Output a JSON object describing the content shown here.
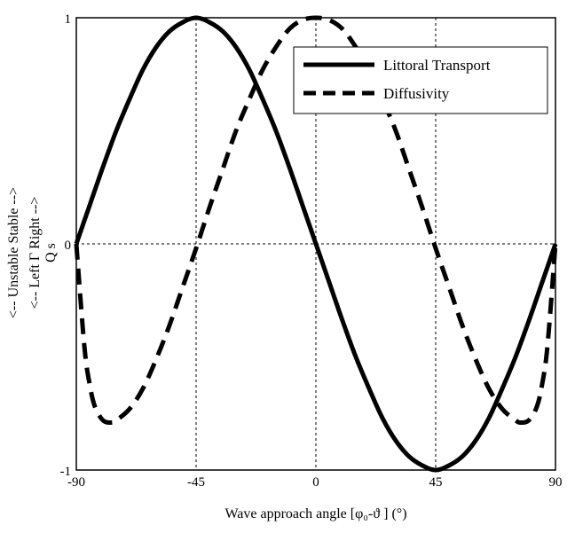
{
  "chart_data": {
    "type": "line",
    "xlabel": "Wave approach angle [φ₀-ϑ ] (°)",
    "ylabel_lines": [
      "<-- Unstable    Stable -->",
      "<-- Left   Γ   Right -->",
      "Q s"
    ],
    "xlim": [
      -90,
      90
    ],
    "ylim": [
      -1,
      1
    ],
    "xticks": [
      -90,
      -45,
      0,
      45,
      90
    ],
    "xtick_labels": [
      "-90",
      "-45",
      "0",
      "45",
      "90"
    ],
    "yticks": [
      -1,
      0,
      1
    ],
    "ytick_labels": [
      "-1",
      "0",
      "1"
    ],
    "grid": "dashed at ticks",
    "legend_position": "top-right",
    "series": [
      {
        "name": "Littoral Transport",
        "style": "solid",
        "x": [
          -90,
          -85,
          -80,
          -75,
          -70,
          -65,
          -60,
          -55,
          -50,
          -45,
          -40,
          -35,
          -30,
          -25,
          -20,
          -15,
          -10,
          -5,
          0,
          5,
          10,
          15,
          20,
          25,
          30,
          35,
          40,
          45,
          50,
          55,
          60,
          65,
          70,
          75,
          80,
          85,
          90
        ],
        "y": [
          0,
          0.17,
          0.34,
          0.5,
          0.64,
          0.77,
          0.87,
          0.94,
          0.98,
          1.0,
          0.98,
          0.94,
          0.87,
          0.77,
          0.64,
          0.5,
          0.34,
          0.17,
          0,
          -0.17,
          -0.34,
          -0.5,
          -0.64,
          -0.77,
          -0.87,
          -0.94,
          -0.98,
          -1.0,
          -0.98,
          -0.94,
          -0.87,
          -0.77,
          -0.64,
          -0.5,
          -0.34,
          -0.17,
          0
        ]
      },
      {
        "name": "Diffusivity",
        "style": "dashed",
        "x": [
          -90,
          -87,
          -85,
          -83,
          -80,
          -77,
          -75,
          -70,
          -65,
          -60,
          -55,
          -50,
          -45,
          -40,
          -35,
          -30,
          -25,
          -20,
          -15,
          -10,
          -5,
          0,
          5,
          10,
          15,
          20,
          25,
          30,
          35,
          40,
          45,
          50,
          55,
          60,
          65,
          70,
          75,
          77,
          80,
          83,
          85,
          87,
          90
        ],
        "y": [
          0,
          -0.45,
          -0.62,
          -0.72,
          -0.78,
          -0.79,
          -0.78,
          -0.73,
          -0.64,
          -0.51,
          -0.36,
          -0.19,
          -0.02,
          0.16,
          0.33,
          0.5,
          0.64,
          0.77,
          0.87,
          0.95,
          0.99,
          1.0,
          0.99,
          0.95,
          0.87,
          0.77,
          0.64,
          0.5,
          0.33,
          0.16,
          -0.02,
          -0.19,
          -0.36,
          -0.51,
          -0.64,
          -0.73,
          -0.78,
          -0.79,
          -0.78,
          -0.72,
          -0.62,
          -0.45,
          0
        ]
      }
    ]
  }
}
